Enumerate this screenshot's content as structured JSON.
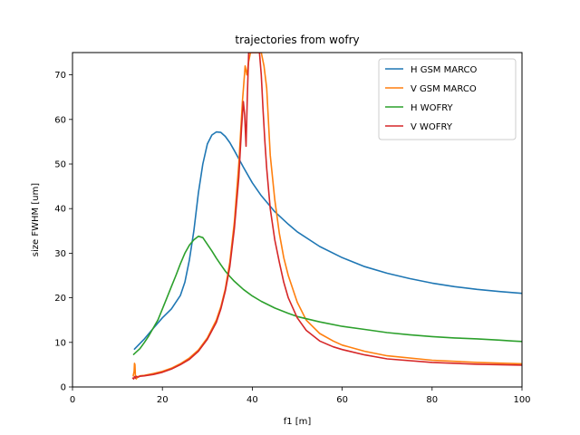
{
  "chart_data": {
    "type": "line",
    "title": "trajectories from wofry",
    "xlabel": "f1 [m]",
    "ylabel": "size FWHM [um]",
    "xlim": [
      0,
      100
    ],
    "ylim": [
      0,
      75
    ],
    "xticks": [
      0,
      20,
      40,
      60,
      80,
      100
    ],
    "yticks": [
      0,
      10,
      20,
      30,
      40,
      50,
      60,
      70
    ],
    "legend_position": "top-right",
    "series": [
      {
        "name": "H GSM MARCO",
        "color": "#1f77b4",
        "x": [
          13.8,
          16,
          18,
          20,
          22,
          24,
          25,
          26,
          27,
          28,
          29,
          30,
          31,
          32,
          33,
          34,
          35,
          36,
          38,
          40,
          42,
          45,
          48,
          50,
          55,
          60,
          65,
          70,
          75,
          80,
          85,
          90,
          95,
          100
        ],
        "y": [
          8.5,
          10.8,
          13.2,
          15.5,
          17.5,
          20.5,
          23.5,
          28.5,
          35.0,
          43.5,
          50.0,
          54.5,
          56.5,
          57.2,
          57.1,
          56.2,
          54.8,
          53.0,
          49.3,
          45.8,
          42.9,
          39.3,
          36.5,
          34.8,
          31.5,
          29.0,
          27.0,
          25.5,
          24.3,
          23.3,
          22.5,
          21.9,
          21.4,
          21.0
        ]
      },
      {
        "name": "V GSM MARCO",
        "color": "#ff7f0e",
        "x": [
          13.5,
          13.7,
          13.8,
          13.9,
          14.0,
          14.2,
          14.5,
          15,
          16,
          18,
          20,
          22,
          24,
          26,
          28,
          30,
          32,
          33,
          34,
          35,
          36,
          37,
          37.8,
          38.4,
          38.8,
          39.2,
          39.6,
          40.0,
          40.4,
          40.8,
          41.2,
          41.6,
          42.0,
          42.6,
          43.2,
          44,
          45,
          46,
          47,
          48,
          50,
          52,
          55,
          58,
          60,
          65,
          70,
          80,
          90,
          100
        ],
        "y": [
          2.5,
          3.5,
          5.3,
          5.0,
          2.5,
          1.8,
          2.3,
          2.5,
          2.6,
          3.0,
          3.5,
          4.2,
          5.2,
          6.5,
          8.3,
          11.0,
          15.0,
          18.0,
          22.0,
          28.0,
          37.0,
          50.0,
          64.0,
          72.0,
          70.0,
          73.0,
          75.0,
          75.0,
          75.0,
          75.0,
          75.0,
          75.0,
          75.0,
          72.0,
          67.0,
          52.0,
          42.0,
          34.5,
          29.0,
          25.0,
          19.0,
          15.0,
          12.0,
          10.3,
          9.4,
          8.0,
          7.0,
          6.0,
          5.5,
          5.2
        ]
      },
      {
        "name": "H WOFRY",
        "color": "#2ca02c",
        "x": [
          13.6,
          15,
          16,
          17,
          18,
          19,
          20,
          21,
          22,
          23,
          24,
          25,
          26,
          27,
          28,
          29,
          30,
          31,
          32,
          33,
          34,
          35,
          36,
          38,
          40,
          42,
          45,
          48,
          50,
          55,
          60,
          65,
          70,
          75,
          80,
          85,
          90,
          95,
          98,
          100
        ],
        "y": [
          7.3,
          8.6,
          10.0,
          11.5,
          13.3,
          15.0,
          17.5,
          20.0,
          22.5,
          25.0,
          27.6,
          30.0,
          31.8,
          33.0,
          33.8,
          33.5,
          32.0,
          30.5,
          28.9,
          27.4,
          26.0,
          24.8,
          23.7,
          21.9,
          20.4,
          19.2,
          17.7,
          16.5,
          15.8,
          14.6,
          13.6,
          12.9,
          12.2,
          11.7,
          11.3,
          11.0,
          10.8,
          10.5,
          10.3,
          10.2
        ]
      },
      {
        "name": "V WOFRY",
        "color": "#d62728",
        "x": [
          13.4,
          13.6,
          13.8,
          14.0,
          14.2,
          14.6,
          15,
          16,
          18,
          20,
          22,
          24,
          26,
          28,
          30,
          32,
          33,
          34,
          35,
          36,
          37,
          37.6,
          38.0,
          38.3,
          38.6,
          38.9,
          39.2,
          39.5,
          39.8,
          40.1,
          40.4,
          40.7,
          41.0,
          41.3,
          41.6,
          42.0,
          42.4,
          42.8,
          43.2,
          44,
          45,
          46,
          47,
          48,
          50,
          52,
          55,
          58,
          60,
          65,
          70,
          80,
          90,
          100
        ],
        "y": [
          2.0,
          1.8,
          2.3,
          2.0,
          2.4,
          2.2,
          2.4,
          2.5,
          2.8,
          3.3,
          4.0,
          5.0,
          6.2,
          8.0,
          10.7,
          14.5,
          17.5,
          21.5,
          27.0,
          35.5,
          47.0,
          58.0,
          64.0,
          61.0,
          54.0,
          65.0,
          75.0,
          75.0,
          75.0,
          75.0,
          75.0,
          75.0,
          75.0,
          75.0,
          75.0,
          70.0,
          62.0,
          55.0,
          49.0,
          40.0,
          33.0,
          28.0,
          23.5,
          20.0,
          15.5,
          12.7,
          10.3,
          9.0,
          8.4,
          7.2,
          6.3,
          5.5,
          5.1,
          4.9
        ]
      }
    ]
  }
}
